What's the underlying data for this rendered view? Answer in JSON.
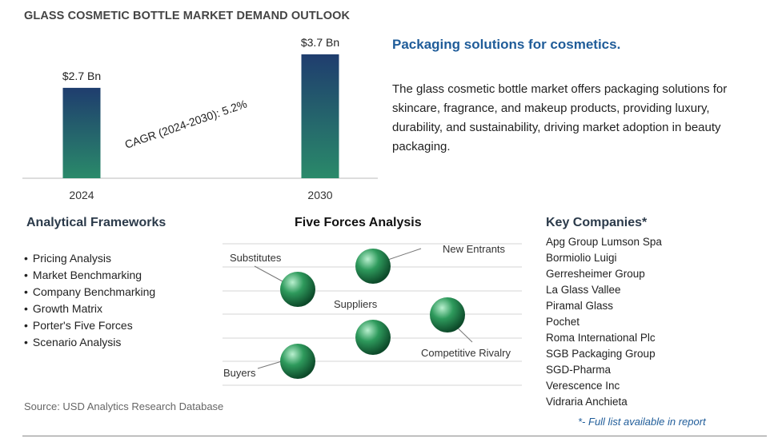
{
  "title": "GLASS COSMETIC BOTTLE MARKET DEMAND OUTLOOK",
  "chart_data": {
    "type": "bar",
    "categories": [
      "2024",
      "2030"
    ],
    "values": [
      2.7,
      3.7
    ],
    "data_labels": [
      "$2.7 Bn",
      "$3.7 Bn"
    ],
    "annotation": "CAGR (2024-2030):  5.2%",
    "ylim": [
      0,
      3.7
    ],
    "colors": {
      "bar_top": "#1f3d6e",
      "bar_bottom": "#2a8a6a"
    }
  },
  "description": {
    "heading": "Packaging solutions for cosmetics.",
    "text": "The glass cosmetic bottle market offers packaging solutions for skincare, fragrance, and makeup products, providing luxury, durability, and sustainability, driving market adoption in beauty packaging."
  },
  "analytical_frameworks": {
    "heading": "Analytical Frameworks",
    "items": [
      "Pricing Analysis",
      "Market Benchmarking",
      "Company Benchmarking",
      "Growth Matrix",
      "Porter's Five Forces",
      "Scenario Analysis"
    ]
  },
  "five_forces": {
    "heading": "Five Forces Analysis",
    "labels": {
      "substitutes": "Substitutes",
      "new_entrants": "New Entrants",
      "suppliers": "Suppliers",
      "competitive_rivalry": "Competitive Rivalry",
      "buyers": "Buyers"
    },
    "sphere_color": "#2e9a5c"
  },
  "key_companies": {
    "heading": "Key Companies*",
    "items": [
      "Apg Group Lumson Spa",
      "Bormiolio Luigi",
      "Gerresheimer Group",
      "La Glass Vallee",
      "Piramal Glass",
      "Pochet",
      "Roma International Plc",
      "SGB Packaging Group",
      "SGD-Pharma",
      "Verescence Inc",
      "Vidraria Anchieta"
    ],
    "note": "*- Full list available in report"
  },
  "source": "Source: USD Analytics Research Database"
}
